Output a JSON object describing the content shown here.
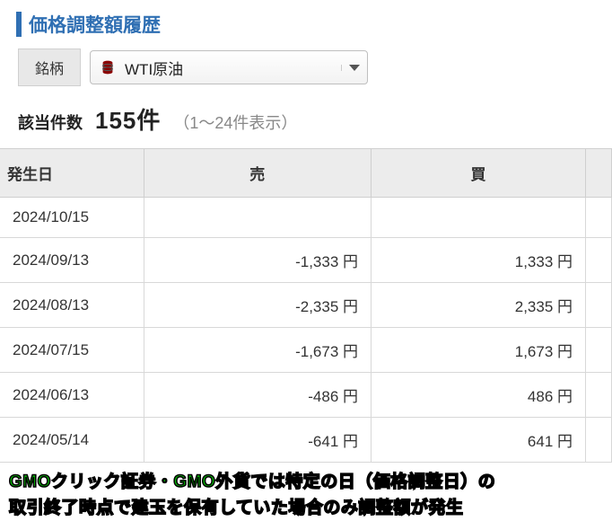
{
  "header": {
    "title": "価格調整額履歴",
    "accent_color": "#2f6fb3"
  },
  "filter": {
    "label": "銘柄",
    "selected": "WTI原油"
  },
  "count": {
    "label": "該当件数",
    "value": "155件",
    "range": "（1〜24件表示）"
  },
  "table": {
    "columns": [
      "発生日",
      "売",
      "買"
    ],
    "rows": [
      {
        "date": "2024/10/15",
        "sell": "",
        "buy": ""
      },
      {
        "date": "2024/09/13",
        "sell": "-1,333 円",
        "buy": "1,333 円"
      },
      {
        "date": "2024/08/13",
        "sell": "-2,335 円",
        "buy": "2,335 円"
      },
      {
        "date": "2024/07/15",
        "sell": "-1,673 円",
        "buy": "1,673 円"
      },
      {
        "date": "2024/06/13",
        "sell": "-486 円",
        "buy": "486 円"
      },
      {
        "date": "2024/05/14",
        "sell": "-641 円",
        "buy": "641 円"
      }
    ],
    "header_bg": "#ececec",
    "border_color": "#cfcfcf"
  },
  "caption": {
    "line1": "GMOクリック証券・GMO外貨では特定の日（価格調整日）の",
    "line2": "取引終了時点で建玉を保有していた場合のみ調整額が発生",
    "text_color": "#00c800",
    "stroke_color": "#000000"
  }
}
